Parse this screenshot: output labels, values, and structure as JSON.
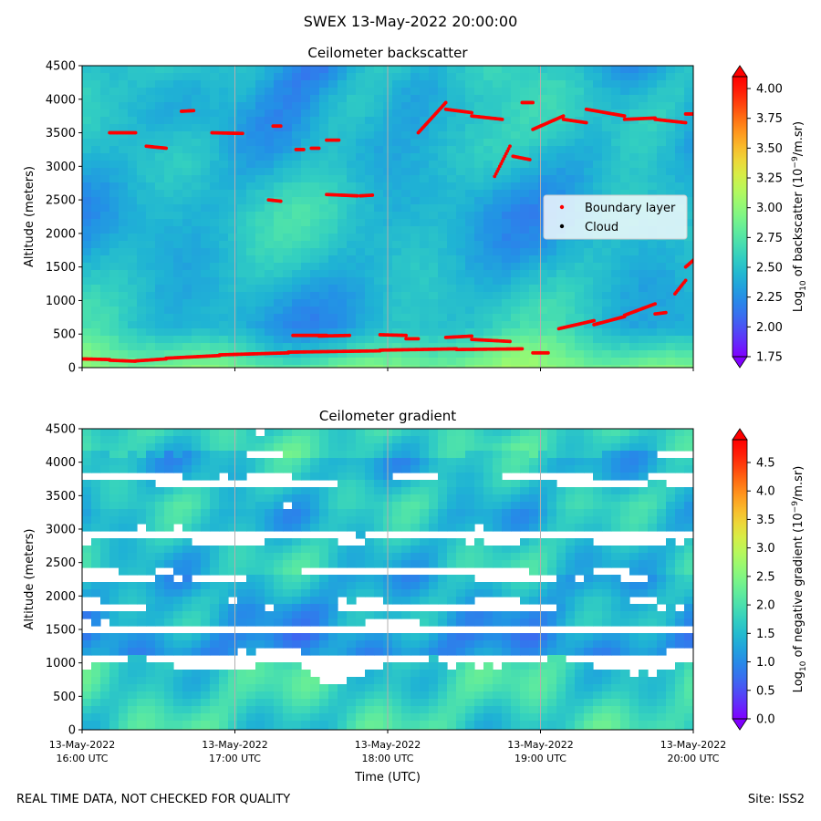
{
  "figure": {
    "suptitle": "SWEX 13-May-2022 20:00:00",
    "footer_left": "REAL TIME DATA, NOT CHECKED FOR QUALITY",
    "footer_right": "Site: ISS2"
  },
  "colors": {
    "cmap_stops": [
      "#8000ff",
      "#5a3cf9",
      "#3a6cf0",
      "#2390e6",
      "#1fb3d4",
      "#33d0c0",
      "#54e6a6",
      "#7cf586",
      "#a7fb66",
      "#d4f048",
      "#f3d135",
      "#ffa321",
      "#ff6a12",
      "#ff2a0a",
      "#ff0000"
    ],
    "boundary_layer": "#ff0000",
    "cloud": "#000000",
    "gridline": "#b0b0b0",
    "legend_border": "#cccccc"
  },
  "chart_data": [
    {
      "type": "heatmap",
      "title": "Ceilometer backscatter",
      "xlabel": "",
      "ylabel": "Altitude (meters)",
      "ylim": [
        0,
        4500
      ],
      "yticks": [
        "0",
        "500",
        "1000",
        "1500",
        "2000",
        "2500",
        "3000",
        "3500",
        "4000",
        "4500"
      ],
      "xticks": [
        {
          "date": "13-May-2022",
          "time": "16:00 UTC"
        },
        {
          "date": "13-May-2022",
          "time": "17:00 UTC"
        },
        {
          "date": "13-May-2022",
          "time": "18:00 UTC"
        },
        {
          "date": "13-May-2022",
          "time": "19:00 UTC"
        },
        {
          "date": "13-May-2022",
          "time": "20:00 UTC"
        }
      ],
      "xlim_hours": [
        16,
        20
      ],
      "grid": "vertical",
      "colorbar": {
        "label": "Log10 of backscatter (10^-9/m.sr)",
        "label_parts": [
          "Log",
          "10",
          " of backscatter (10",
          "−9",
          "/m.sr)"
        ],
        "vmin": 1.75,
        "vmax": 4.1,
        "ticks": [
          "1.75",
          "2.00",
          "2.25",
          "2.50",
          "2.75",
          "3.00",
          "3.25",
          "3.50",
          "3.75",
          "4.00"
        ]
      },
      "legend": {
        "position": "center-right",
        "entries": [
          "Boundary layer",
          "Cloud"
        ]
      },
      "field": {
        "base": 2.45,
        "surface": 2.9,
        "surface_depth": 600,
        "upper_low": 2.2
      },
      "boundary_layer_segments": [
        {
          "start": 16.0,
          "end": 16.18,
          "y0": 130,
          "y1": 120
        },
        {
          "start": 16.18,
          "end": 16.35,
          "y0": 110,
          "y1": 95
        },
        {
          "start": 16.35,
          "end": 16.55,
          "y0": 100,
          "y1": 130
        },
        {
          "start": 16.55,
          "end": 16.9,
          "y0": 140,
          "y1": 180
        },
        {
          "start": 16.9,
          "end": 17.35,
          "y0": 190,
          "y1": 220
        },
        {
          "start": 17.35,
          "end": 17.95,
          "y0": 230,
          "y1": 250
        },
        {
          "start": 17.95,
          "end": 18.45,
          "y0": 260,
          "y1": 280
        },
        {
          "start": 18.45,
          "end": 18.88,
          "y0": 270,
          "y1": 280
        },
        {
          "start": 17.38,
          "end": 17.6,
          "y0": 480,
          "y1": 480
        },
        {
          "start": 17.55,
          "end": 17.75,
          "y0": 470,
          "y1": 480
        },
        {
          "start": 17.95,
          "end": 18.12,
          "y0": 490,
          "y1": 480
        },
        {
          "start": 18.12,
          "end": 18.2,
          "y0": 430,
          "y1": 430
        },
        {
          "start": 18.38,
          "end": 18.55,
          "y0": 450,
          "y1": 470
        },
        {
          "start": 18.55,
          "end": 18.8,
          "y0": 420,
          "y1": 390
        },
        {
          "start": 18.95,
          "end": 19.05,
          "y0": 220,
          "y1": 220
        },
        {
          "start": 16.18,
          "end": 16.35,
          "y0": 3500,
          "y1": 3500
        },
        {
          "start": 16.42,
          "end": 16.55,
          "y0": 3300,
          "y1": 3270
        },
        {
          "start": 16.65,
          "end": 16.73,
          "y0": 3820,
          "y1": 3830
        },
        {
          "start": 16.85,
          "end": 17.05,
          "y0": 3500,
          "y1": 3490
        },
        {
          "start": 17.22,
          "end": 17.3,
          "y0": 2500,
          "y1": 2480
        },
        {
          "start": 17.25,
          "end": 17.3,
          "y0": 3600,
          "y1": 3600
        },
        {
          "start": 17.4,
          "end": 17.45,
          "y0": 3250,
          "y1": 3250
        },
        {
          "start": 17.5,
          "end": 17.55,
          "y0": 3270,
          "y1": 3270
        },
        {
          "start": 17.6,
          "end": 17.68,
          "y0": 3390,
          "y1": 3390
        },
        {
          "start": 17.6,
          "end": 17.8,
          "y0": 2580,
          "y1": 2560
        },
        {
          "start": 17.82,
          "end": 17.9,
          "y0": 2560,
          "y1": 2570
        },
        {
          "start": 18.2,
          "end": 18.38,
          "y0": 3500,
          "y1": 3950
        },
        {
          "start": 18.38,
          "end": 18.55,
          "y0": 3850,
          "y1": 3800
        },
        {
          "start": 18.55,
          "end": 18.75,
          "y0": 3750,
          "y1": 3700
        },
        {
          "start": 18.7,
          "end": 18.8,
          "y0": 2850,
          "y1": 3300
        },
        {
          "start": 18.82,
          "end": 18.93,
          "y0": 3150,
          "y1": 3100
        },
        {
          "start": 18.88,
          "end": 18.95,
          "y0": 3950,
          "y1": 3950
        },
        {
          "start": 18.95,
          "end": 19.15,
          "y0": 3550,
          "y1": 3750
        },
        {
          "start": 19.15,
          "end": 19.3,
          "y0": 3700,
          "y1": 3650
        },
        {
          "start": 19.3,
          "end": 19.55,
          "y0": 3850,
          "y1": 3750
        },
        {
          "start": 19.55,
          "end": 19.75,
          "y0": 3700,
          "y1": 3720
        },
        {
          "start": 19.75,
          "end": 19.95,
          "y0": 3700,
          "y1": 3650
        },
        {
          "start": 19.95,
          "end": 20.0,
          "y0": 3780,
          "y1": 3780
        },
        {
          "start": 19.12,
          "end": 19.35,
          "y0": 580,
          "y1": 700
        },
        {
          "start": 19.35,
          "end": 19.55,
          "y0": 640,
          "y1": 760
        },
        {
          "start": 19.55,
          "end": 19.75,
          "y0": 780,
          "y1": 950
        },
        {
          "start": 19.75,
          "end": 19.82,
          "y0": 800,
          "y1": 820
        },
        {
          "start": 19.88,
          "end": 19.95,
          "y0": 1100,
          "y1": 1300
        },
        {
          "start": 19.95,
          "end": 20.0,
          "y0": 1500,
          "y1": 1600
        }
      ]
    },
    {
      "type": "heatmap",
      "title": "Ceilometer gradient",
      "xlabel": "Time (UTC)",
      "ylabel": "Altitude (meters)",
      "ylim": [
        0,
        4500
      ],
      "yticks": [
        "0",
        "500",
        "1000",
        "1500",
        "2000",
        "2500",
        "3000",
        "3500",
        "4000",
        "4500"
      ],
      "xticks": [
        {
          "date": "13-May-2022",
          "time": "16:00 UTC"
        },
        {
          "date": "13-May-2022",
          "time": "17:00 UTC"
        },
        {
          "date": "13-May-2022",
          "time": "18:00 UTC"
        },
        {
          "date": "13-May-2022",
          "time": "19:00 UTC"
        },
        {
          "date": "13-May-2022",
          "time": "20:00 UTC"
        }
      ],
      "xlim_hours": [
        16,
        20
      ],
      "grid": "vertical",
      "colorbar": {
        "label": "Log10 of negative gradient (10^-9/m.sr)",
        "label_parts": [
          "Log",
          "10",
          " of negative gradient (10",
          "−9",
          "/m.sr)"
        ],
        "vmin": 0.0,
        "vmax": 4.9,
        "ticks": [
          "0.0",
          "0.5",
          "1.0",
          "1.5",
          "2.0",
          "2.5",
          "3.0",
          "3.5",
          "4.0",
          "4.5"
        ]
      },
      "bands": [
        {
          "altitude": 300,
          "thickness": 650,
          "value": 1.8
        },
        {
          "altitude": 1300,
          "thickness": 160,
          "value": 1.1
        },
        {
          "altitude": 1700,
          "thickness": 120,
          "value": 1.3
        },
        {
          "altitude": 2100,
          "thickness": 180,
          "value": 1.4
        },
        {
          "altitude": 2600,
          "thickness": 220,
          "value": 1.6
        },
        {
          "altitude": 3150,
          "thickness": 170,
          "value": 1.5
        },
        {
          "altitude": 3500,
          "thickness": 200,
          "value": 1.6
        },
        {
          "altitude": 3950,
          "thickness": 160,
          "value": 1.5
        },
        {
          "altitude": 4300,
          "thickness": 240,
          "value": 1.8
        }
      ]
    }
  ]
}
